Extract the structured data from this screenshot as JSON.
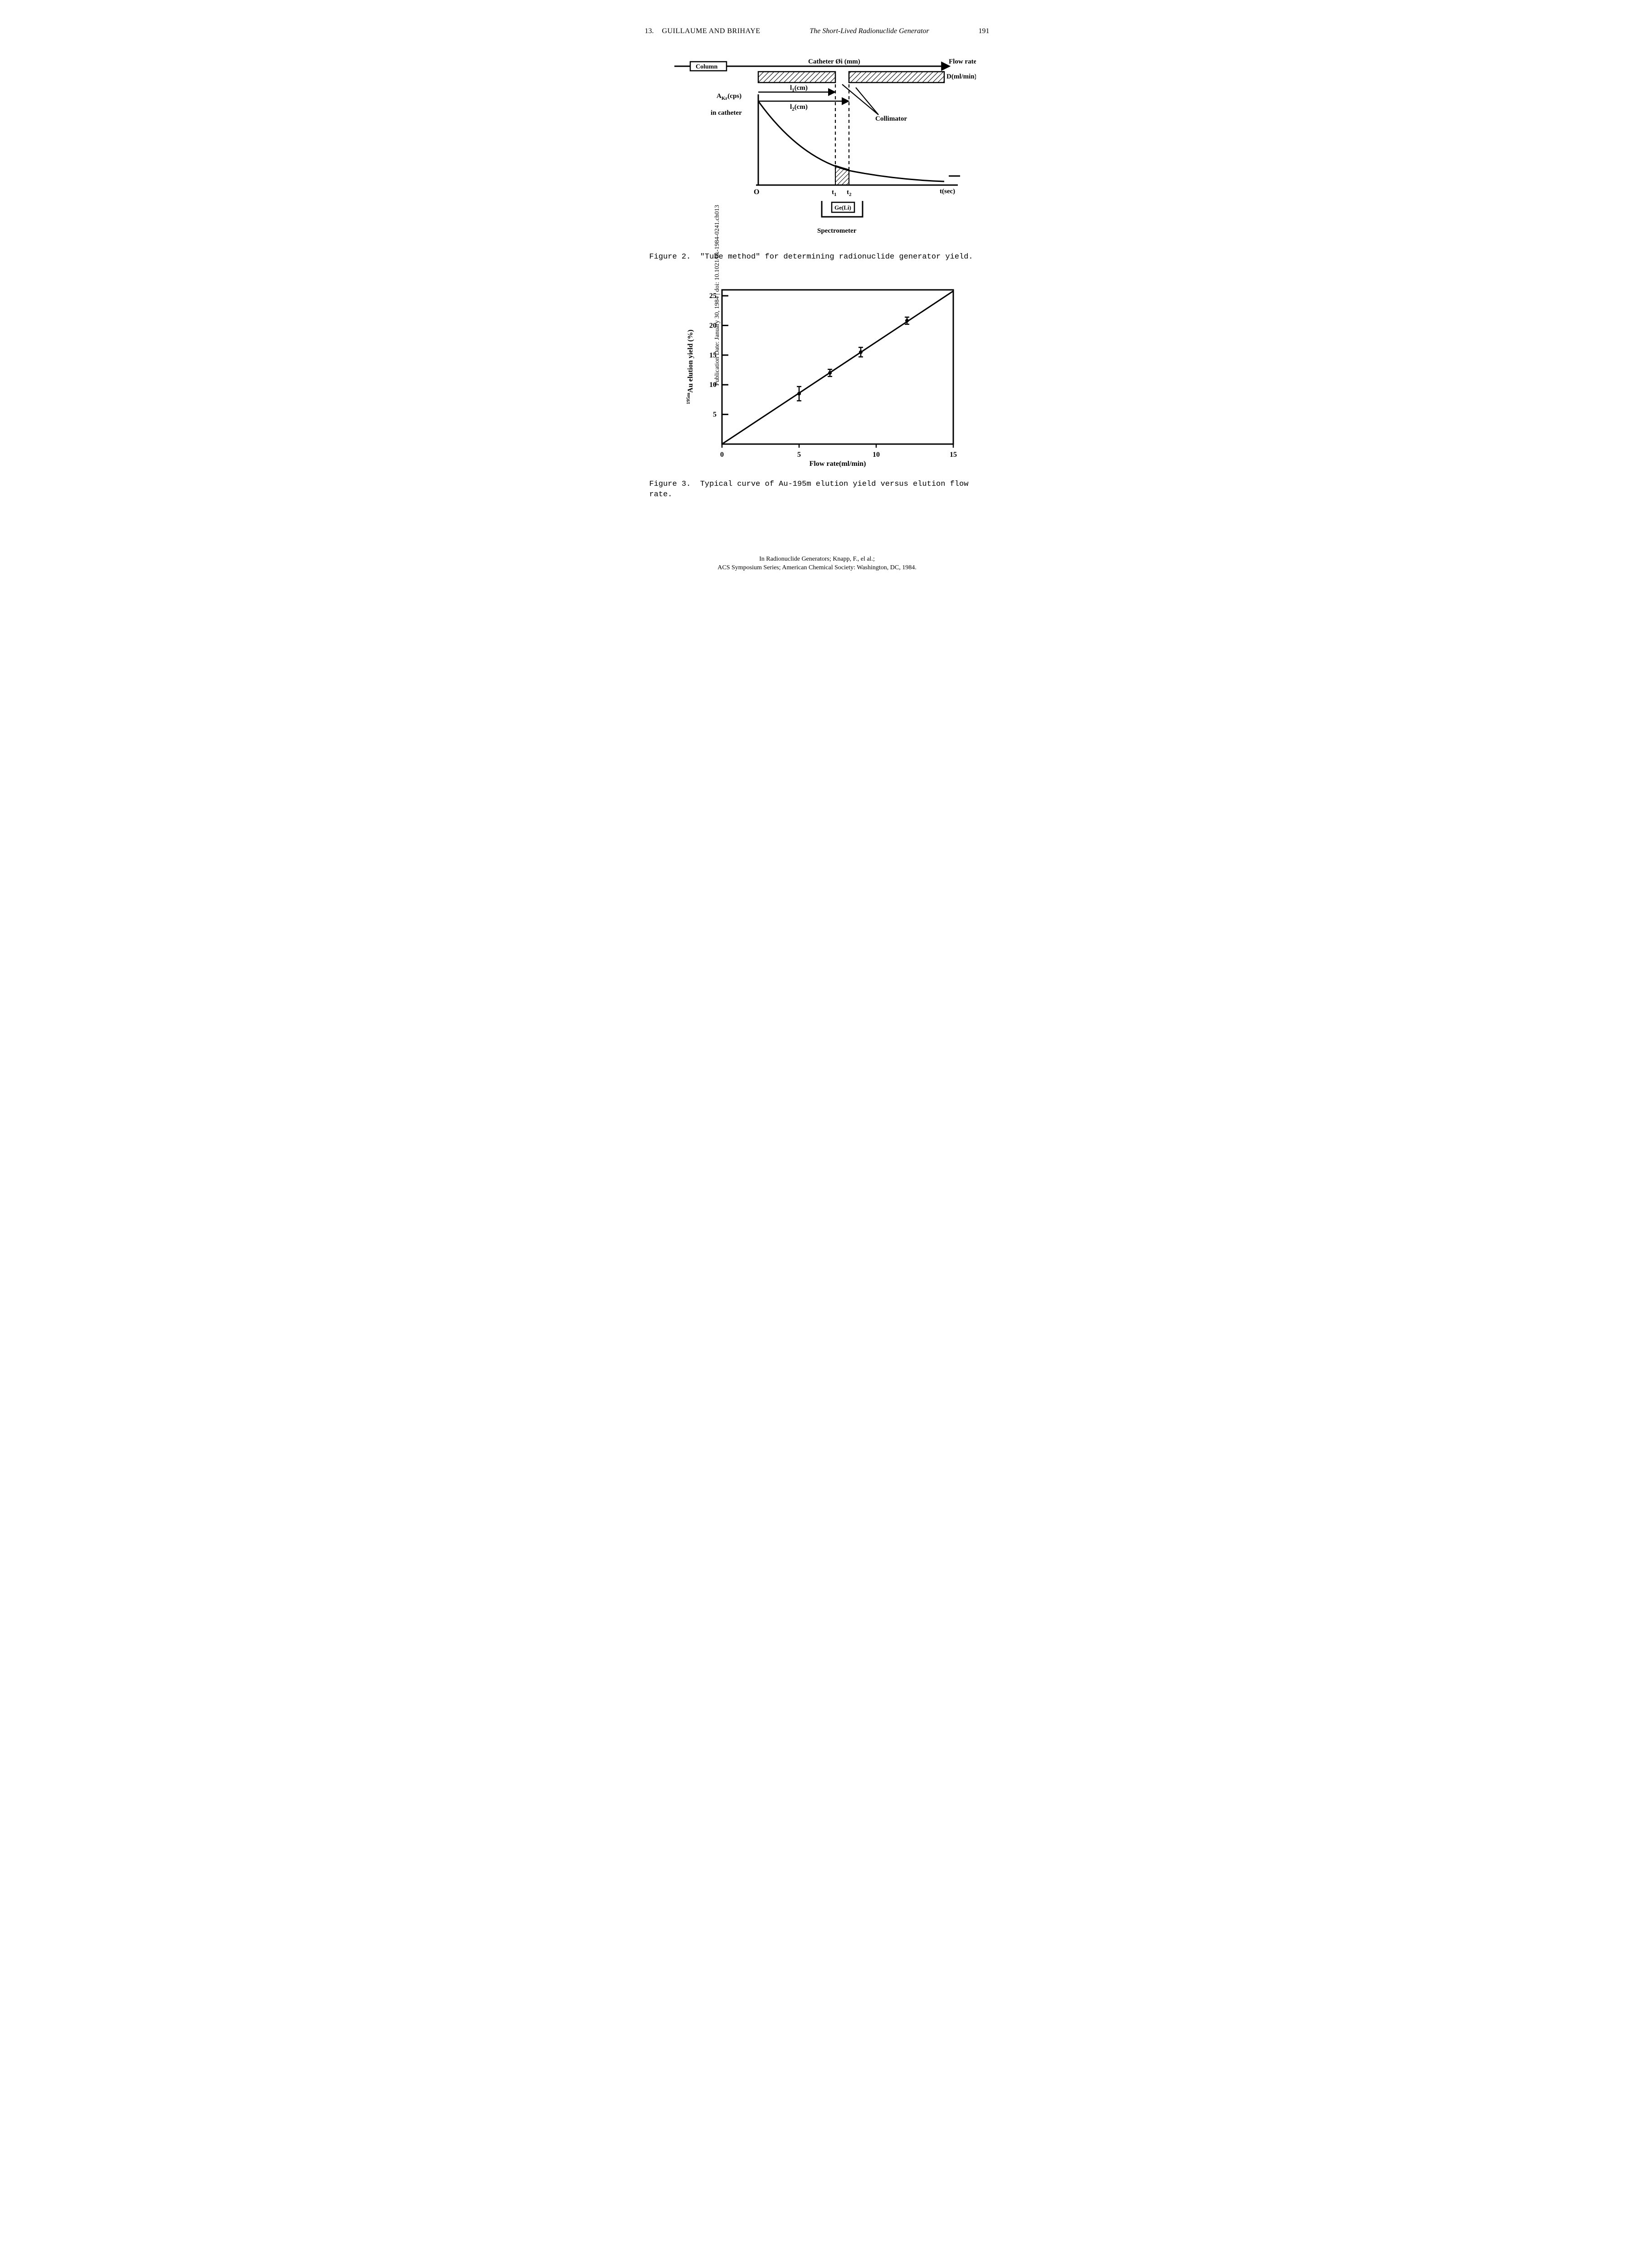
{
  "header": {
    "chapter": "13.",
    "authors": "GUILLAUME AND BRIHAYE",
    "title": "The Short-Lived Radionuclide Generator",
    "pageNum": "191"
  },
  "sidebar": "Publication Date: January 30, 1984 | doi: 10.1021/bk-1984-0241.ch013",
  "fig2": {
    "type": "diagram",
    "labels": {
      "column": "Column",
      "catheter": "Catheter Øi (mm)",
      "flowrate": "Flow rate",
      "dunits": "D(ml/min)",
      "akr": "A",
      "akr_sub": "Kr",
      "akr_units": "(cps)",
      "incatheter": "in catheter",
      "l1": "l",
      "l1_sub": "1",
      "l1_units": "(cm)",
      "l2": "l",
      "l2_sub": "2",
      "l2_units": "(cm)",
      "collimator": "Collimator",
      "origin": "O",
      "t1": "t",
      "t1_sub": "1",
      "t2": "t",
      "t2_sub": "2",
      "taxis": "t(sec)",
      "geli": "Ge(Li)",
      "spectrometer": "Spectrometer"
    },
    "caption_label": "Figure 2.",
    "caption_text": "\"Tube method\" for determining radionuclide generator yield.",
    "colors": {
      "stroke": "#000000",
      "bg": "#ffffff"
    }
  },
  "fig3": {
    "type": "scatter",
    "xlabel": "Flow rate(ml/min)",
    "ylabel_prefix": "195m",
    "ylabel_main": "Au elution yield (%)",
    "xlim": [
      0,
      15
    ],
    "ylim": [
      0,
      26
    ],
    "xticks": [
      0,
      5,
      10,
      15
    ],
    "yticks": [
      5,
      10,
      15,
      20,
      25
    ],
    "points": [
      {
        "x": 5.0,
        "y": 8.5,
        "err": 1.2
      },
      {
        "x": 7.0,
        "y": 12.0,
        "err": 0.6
      },
      {
        "x": 9.0,
        "y": 15.5,
        "err": 0.8
      },
      {
        "x": 12.0,
        "y": 20.8,
        "err": 0.6
      }
    ],
    "line": {
      "x1": 0,
      "y1": 0,
      "x2": 15,
      "y2": 25.8
    },
    "caption_label": "Figure 3.",
    "caption_text": "Typical curve of Au-195m elution yield versus elution flow rate.",
    "colors": {
      "stroke": "#000000",
      "bg": "#ffffff",
      "marker": "#000000"
    },
    "line_width": 3,
    "border_width": 3,
    "marker_radius": 4,
    "font_size_axis": 16
  },
  "footer": {
    "line1": "In Radionuclide Generators; Knapp, F., el al.;",
    "line2": "ACS Symposium Series; American Chemical Society: Washington, DC, 1984."
  }
}
